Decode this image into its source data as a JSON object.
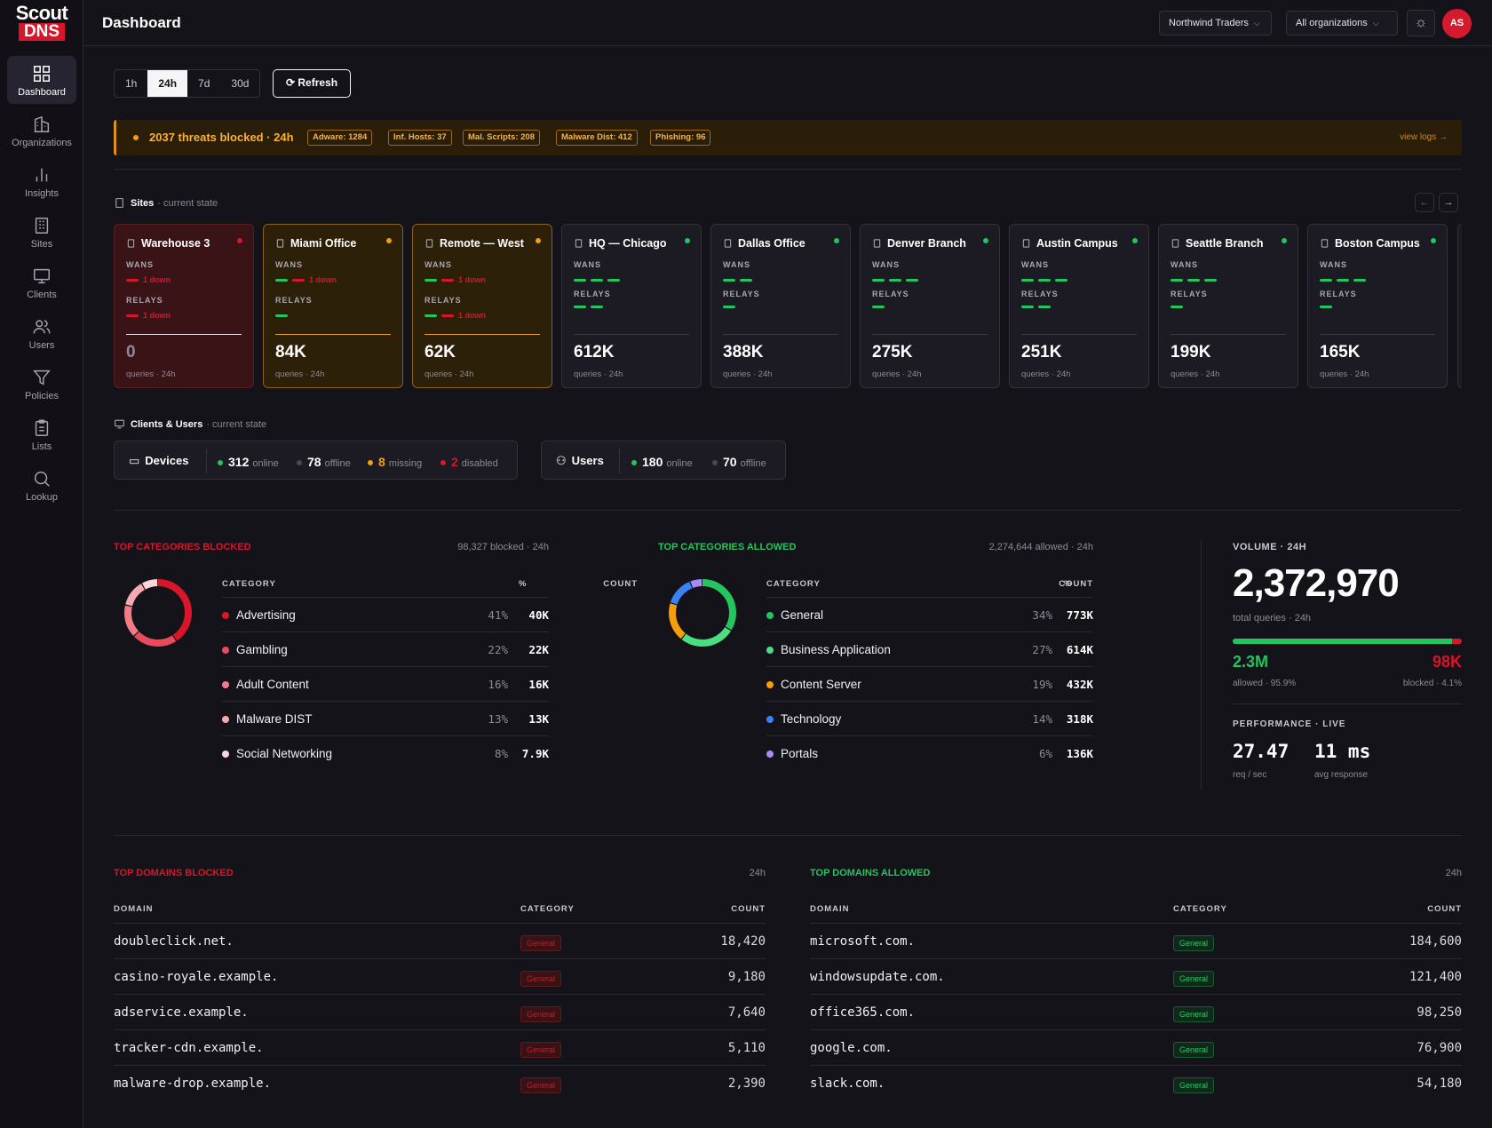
{
  "app": {
    "logo_top": "Scout",
    "logo_bottom": "DNS",
    "page_title": "Dashboard"
  },
  "sidebar": {
    "items": [
      {
        "label": "Dashboard",
        "icon": "grid-icon",
        "active": true
      },
      {
        "label": "Organizations",
        "icon": "building-icon"
      },
      {
        "label": "Insights",
        "icon": "bar-chart-icon"
      },
      {
        "label": "Sites",
        "icon": "site-icon"
      },
      {
        "label": "Clients",
        "icon": "monitor-icon"
      },
      {
        "label": "Users",
        "icon": "users-icon"
      },
      {
        "label": "Policies",
        "icon": "filter-icon"
      },
      {
        "label": "Lists",
        "icon": "clipboard-icon"
      },
      {
        "label": "Lookup",
        "icon": "search-icon"
      }
    ]
  },
  "topbar": {
    "org_select": "Northwind Traders",
    "scope_select": "All organizations",
    "avatar": "AS"
  },
  "toolbar": {
    "ranges": [
      "1h",
      "24h",
      "7d",
      "30d"
    ],
    "selected_range": "24h",
    "refresh": "Refresh"
  },
  "alert": {
    "text": "2037 threats blocked · 24h",
    "chips": [
      "Adware: 1284",
      "Inf. Hosts: 37",
      "Mal. Scripts: 208",
      "Malware Dist: 412",
      "Phishing: 96"
    ],
    "link": "view logs →"
  },
  "sites": {
    "title": "Sites",
    "sub": "· current state",
    "wans_label": "WANS",
    "relays_label": "RELAYS",
    "queries_label": "queries · 24h",
    "cards": [
      {
        "name": "Warehouse 3",
        "state": "red",
        "wans": "1 down",
        "relays": "1 down",
        "queries": "0"
      },
      {
        "name": "Miami Office",
        "state": "amber",
        "wans": "1 down",
        "relays": "",
        "queries": "84K"
      },
      {
        "name": "Remote — West",
        "state": "amber",
        "wans": "1 down",
        "relays": "1 down",
        "queries": "62K"
      },
      {
        "name": "HQ — Chicago",
        "state": "ok",
        "queries": "612K"
      },
      {
        "name": "Dallas Office",
        "state": "ok",
        "queries": "388K"
      },
      {
        "name": "Denver Branch",
        "state": "ok",
        "queries": "275K"
      },
      {
        "name": "Austin Campus",
        "state": "ok",
        "queries": "251K"
      },
      {
        "name": "Seattle Branch",
        "state": "ok",
        "queries": "199K"
      },
      {
        "name": "Boston Campus",
        "state": "ok",
        "queries": "165K"
      }
    ]
  },
  "clients": {
    "title": "Clients & Users",
    "sub": "· current state",
    "devices": {
      "label": "Devices",
      "online": "312",
      "online_l": "online",
      "offline": "78",
      "offline_l": "offline",
      "missing": "8",
      "missing_l": "missing",
      "disabled": "2",
      "disabled_l": "disabled"
    },
    "users": {
      "label": "Users",
      "online": "180",
      "online_l": "online",
      "offline": "70",
      "offline_l": "offline"
    }
  },
  "blocked_cats": {
    "title": "TOP CATEGORIES BLOCKED",
    "meta": "98,327 blocked · 24h",
    "h_cat": "CATEGORY",
    "h_pct": "%",
    "h_count": "COUNT",
    "rows": [
      {
        "name": "Advertising",
        "pct": "41%",
        "count": "40K",
        "color": "#d7152b"
      },
      {
        "name": "Gambling",
        "pct": "22%",
        "count": "22K",
        "color": "#ea4a5d"
      },
      {
        "name": "Adult Content",
        "pct": "16%",
        "count": "16K",
        "color": "#f27b88"
      },
      {
        "name": "Malware DIST",
        "pct": "13%",
        "count": "13K",
        "color": "#f6a9b1"
      },
      {
        "name": "Social Networking",
        "pct": "8%",
        "count": "7.9K",
        "color": "#fbd7db"
      }
    ]
  },
  "allowed_cats": {
    "title": "TOP CATEGORIES ALLOWED",
    "meta": "2,274,644 allowed · 24h",
    "h_cat": "CATEGORY",
    "h_pct": "%",
    "h_count": "COUNT",
    "rows": [
      {
        "name": "General",
        "pct": "34%",
        "count": "773K",
        "color": "#22c55e"
      },
      {
        "name": "Business Application",
        "pct": "27%",
        "count": "614K",
        "color": "#4ade80"
      },
      {
        "name": "Content Server",
        "pct": "19%",
        "count": "432K",
        "color": "#f59e0b"
      },
      {
        "name": "Technology",
        "pct": "14%",
        "count": "318K",
        "color": "#3b82f6"
      },
      {
        "name": "Portals",
        "pct": "6%",
        "count": "136K",
        "color": "#a78bfa"
      }
    ]
  },
  "volume": {
    "label": "VOLUME · 24H",
    "total": "2,372,970",
    "total_l": "total queries · 24h",
    "allowed": "2.3M",
    "allowed_l": "allowed · 95.9%",
    "blocked": "98K",
    "blocked_l": "blocked · 4.1%",
    "allowed_fraction": 0.959,
    "perf_label": "PERFORMANCE · LIVE",
    "rps": "27.47",
    "rps_l": "req / sec",
    "resp": "11 ms",
    "resp_l": "avg response"
  },
  "blocked_domains": {
    "title": "TOP DOMAINS BLOCKED",
    "meta": "24h",
    "h_domain": "DOMAIN",
    "h_cat": "CATEGORY",
    "h_count": "COUNT",
    "rows": [
      {
        "domain": "doubleclick.net.",
        "cat": "General",
        "count": "18,420"
      },
      {
        "domain": "casino-royale.example.",
        "cat": "General",
        "count": "9,180"
      },
      {
        "domain": "adservice.example.",
        "cat": "General",
        "count": "7,640"
      },
      {
        "domain": "tracker-cdn.example.",
        "cat": "General",
        "count": "5,110"
      },
      {
        "domain": "malware-drop.example.",
        "cat": "General",
        "count": "2,390"
      }
    ]
  },
  "allowed_domains": {
    "title": "TOP DOMAINS ALLOWED",
    "meta": "24h",
    "h_domain": "DOMAIN",
    "h_cat": "CATEGORY",
    "h_count": "COUNT",
    "rows": [
      {
        "domain": "microsoft.com.",
        "cat": "General",
        "count": "184,600"
      },
      {
        "domain": "windowsupdate.com.",
        "cat": "General",
        "count": "121,400"
      },
      {
        "domain": "office365.com.",
        "cat": "General",
        "count": "98,250"
      },
      {
        "domain": "google.com.",
        "cat": "General",
        "count": "76,900"
      },
      {
        "domain": "slack.com.",
        "cat": "General",
        "count": "54,180"
      }
    ]
  },
  "colors": {
    "brand": "#d7152b",
    "ok": "#22c55e",
    "warn": "#f59e0b",
    "bad": "#d7152b"
  }
}
